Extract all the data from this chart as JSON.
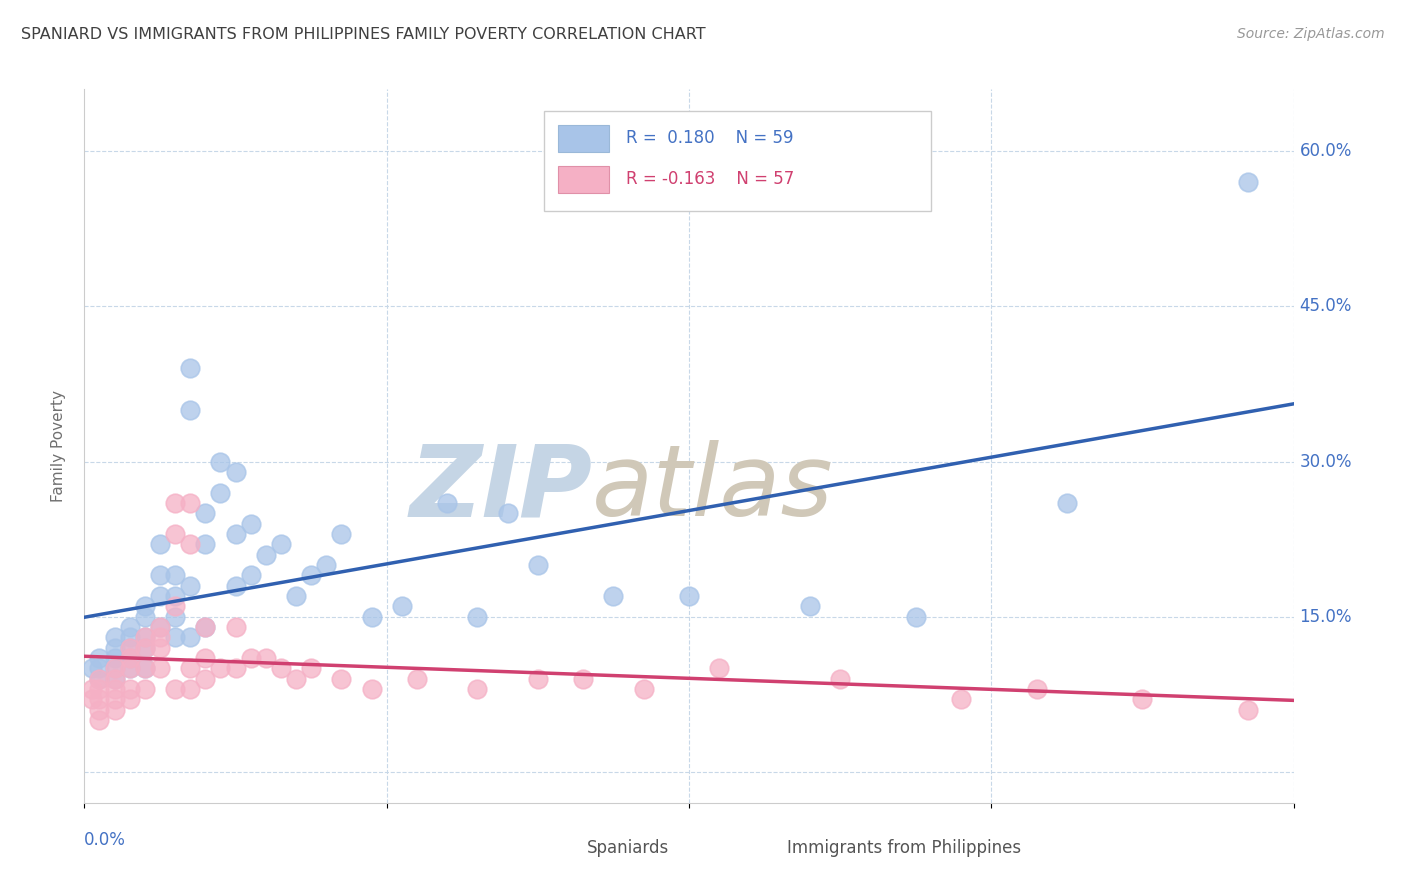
{
  "title": "SPANIARD VS IMMIGRANTS FROM PHILIPPINES FAMILY POVERTY CORRELATION CHART",
  "source": "Source: ZipAtlas.com",
  "ylabel": "Family Poverty",
  "ytick_positions": [
    0.0,
    0.15,
    0.3,
    0.45,
    0.6
  ],
  "ytick_labels": [
    "",
    "15.0%",
    "30.0%",
    "45.0%",
    "60.0%"
  ],
  "xtick_positions": [
    0.0,
    0.2,
    0.4,
    0.6,
    0.8
  ],
  "xlim": [
    0.0,
    0.8
  ],
  "ylim": [
    -0.03,
    0.66
  ],
  "spaniards_color": "#a8c4e8",
  "philippines_color": "#f5b0c5",
  "spaniards_edge_color": "#a8c4e8",
  "philippines_edge_color": "#f5b0c5",
  "spaniards_line_color": "#3060b0",
  "philippines_line_color": "#d04070",
  "watermark_zip": "ZIP",
  "watermark_atlas": "atlas",
  "watermark_color_zip": "#c5d5e5",
  "watermark_color_atlas": "#d0c8b8",
  "background_color": "#ffffff",
  "grid_color": "#c8d8e8",
  "title_color": "#404040",
  "source_color": "#999999",
  "axis_label_color": "#4472c4",
  "ylabel_color": "#707070",
  "legend_r1": "R =  0.180",
  "legend_n1": "N = 59",
  "legend_r2": "R = -0.163",
  "legend_n2": "N = 57",
  "spaniards_x": [
    0.005,
    0.01,
    0.01,
    0.01,
    0.02,
    0.02,
    0.02,
    0.02,
    0.02,
    0.03,
    0.03,
    0.03,
    0.03,
    0.03,
    0.04,
    0.04,
    0.04,
    0.04,
    0.04,
    0.05,
    0.05,
    0.05,
    0.05,
    0.06,
    0.06,
    0.06,
    0.06,
    0.07,
    0.07,
    0.07,
    0.07,
    0.08,
    0.08,
    0.08,
    0.09,
    0.09,
    0.1,
    0.1,
    0.1,
    0.11,
    0.11,
    0.12,
    0.13,
    0.14,
    0.15,
    0.16,
    0.17,
    0.19,
    0.21,
    0.24,
    0.26,
    0.28,
    0.3,
    0.35,
    0.4,
    0.48,
    0.55,
    0.65,
    0.77
  ],
  "spaniards_y": [
    0.1,
    0.09,
    0.11,
    0.1,
    0.13,
    0.12,
    0.11,
    0.1,
    0.09,
    0.14,
    0.13,
    0.12,
    0.11,
    0.1,
    0.16,
    0.15,
    0.13,
    0.12,
    0.1,
    0.22,
    0.19,
    0.17,
    0.14,
    0.19,
    0.17,
    0.15,
    0.13,
    0.39,
    0.35,
    0.18,
    0.13,
    0.25,
    0.22,
    0.14,
    0.3,
    0.27,
    0.29,
    0.23,
    0.18,
    0.24,
    0.19,
    0.21,
    0.22,
    0.17,
    0.19,
    0.2,
    0.23,
    0.15,
    0.16,
    0.26,
    0.15,
    0.25,
    0.2,
    0.17,
    0.17,
    0.16,
    0.15,
    0.26,
    0.57
  ],
  "philippines_x": [
    0.005,
    0.005,
    0.01,
    0.01,
    0.01,
    0.01,
    0.01,
    0.02,
    0.02,
    0.02,
    0.02,
    0.02,
    0.03,
    0.03,
    0.03,
    0.03,
    0.03,
    0.04,
    0.04,
    0.04,
    0.04,
    0.05,
    0.05,
    0.05,
    0.05,
    0.06,
    0.06,
    0.06,
    0.06,
    0.07,
    0.07,
    0.07,
    0.07,
    0.08,
    0.08,
    0.08,
    0.09,
    0.1,
    0.1,
    0.11,
    0.12,
    0.13,
    0.14,
    0.15,
    0.17,
    0.19,
    0.22,
    0.26,
    0.3,
    0.33,
    0.37,
    0.42,
    0.5,
    0.58,
    0.63,
    0.7,
    0.77
  ],
  "philippines_y": [
    0.08,
    0.07,
    0.09,
    0.08,
    0.07,
    0.06,
    0.05,
    0.1,
    0.09,
    0.08,
    0.07,
    0.06,
    0.12,
    0.11,
    0.1,
    0.08,
    0.07,
    0.13,
    0.12,
    0.1,
    0.08,
    0.14,
    0.13,
    0.12,
    0.1,
    0.26,
    0.23,
    0.16,
    0.08,
    0.26,
    0.22,
    0.1,
    0.08,
    0.14,
    0.11,
    0.09,
    0.1,
    0.14,
    0.1,
    0.11,
    0.11,
    0.1,
    0.09,
    0.1,
    0.09,
    0.08,
    0.09,
    0.08,
    0.09,
    0.09,
    0.08,
    0.1,
    0.09,
    0.07,
    0.08,
    0.07,
    0.06
  ],
  "marker_size": 180
}
